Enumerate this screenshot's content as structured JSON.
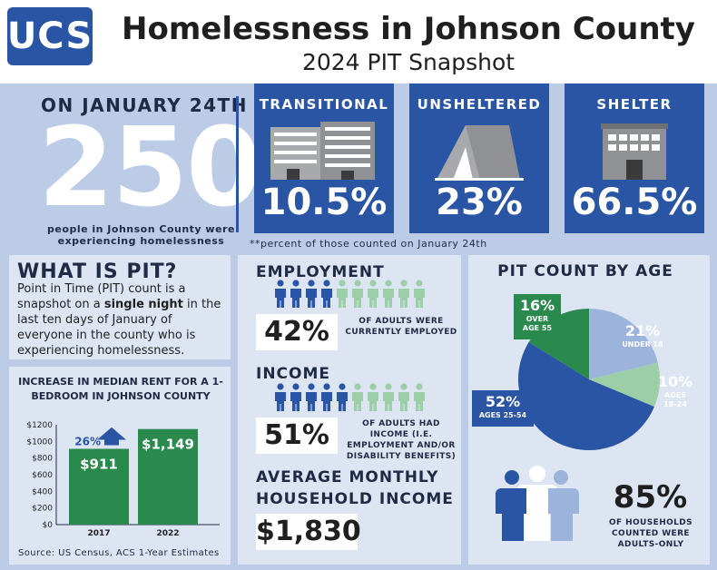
{
  "header": {
    "logo": "UCS",
    "title": "Homelessness in Johnson County",
    "subtitle": "2024 PIT Snapshot"
  },
  "count": {
    "date_label": "ON JANUARY 24TH",
    "number": "250",
    "caption": "people in Johnson County were experiencing homelessness"
  },
  "categories": [
    {
      "label": "TRANSITIONAL",
      "pct": "10.5%",
      "icon": "apartment-buildings-icon"
    },
    {
      "label": "UNSHELTERED",
      "pct": "23%",
      "icon": "tent-icon"
    },
    {
      "label": "SHELTER",
      "pct": "66.5%",
      "icon": "shelter-building-icon"
    }
  ],
  "footnote": "**percent of those counted on January 24th",
  "pit": {
    "title": "WHAT IS PIT?",
    "text_1": "Point in Time (PIT) count is a snapshot on a",
    "text_bold": "single night",
    "text_2": "in the last ten days of January of everyone in the county who is experiencing homelessness."
  },
  "rent": {
    "title": "INCREASE IN MEDIAN RENT FOR A 1-BEDROOM IN JOHNSON COUNTY",
    "increase": "26%",
    "source": "Source: US Census, ACS 1-Year Estimates"
  },
  "employment": {
    "title": "EMPLOYMENT",
    "pct": "42%",
    "caption": "OF ADULTS WERE CURRENTLY EMPLOYED",
    "people_total": 10,
    "people_highlighted": 4
  },
  "income": {
    "title": "INCOME",
    "pct": "51%",
    "caption": "OF ADULTS HAD INCOME (I.E. EMPLOYMENT AND/OR DISABILITY BENEFITS)",
    "people_total": 10,
    "people_highlighted": 5
  },
  "monthly": {
    "title_1": "AVERAGE MONTHLY",
    "title_2": "HOUSEHOLD INCOME",
    "value": "$1,830"
  },
  "age": {
    "title": "PIT COUNT BY AGE"
  },
  "households": {
    "pct": "85%",
    "caption": "OF HOUSEHOLDS COUNTED WERE ADULTS-ONLY",
    "icon": "family-icon"
  },
  "colors": {
    "blue": "#2a55a4",
    "dark_green": "#2a8a4e",
    "light_green": "#9ccfa8",
    "light_blue": "#9cb3db",
    "mid_blue": "#6c8fcb",
    "background": "#bccbe6",
    "panel": "#dde5f3"
  },
  "chart_data": [
    {
      "type": "bar",
      "title": "INCREASE IN MEDIAN RENT FOR A 1-BEDROOM IN JOHNSON COUNTY",
      "categories": [
        "2017",
        "2022"
      ],
      "values": [
        911,
        1149
      ],
      "data_labels": [
        "$911",
        "$1,149"
      ],
      "ylim": [
        0,
        1200
      ],
      "yticks": [
        "$0",
        "$200",
        "$400",
        "$600",
        "$800",
        "$1000",
        "$1200"
      ],
      "ytick_values": [
        0,
        200,
        400,
        600,
        800,
        1000,
        1200
      ],
      "annotation": "26%",
      "grid": false
    },
    {
      "type": "pie",
      "title": "PIT COUNT BY AGE",
      "slices": [
        {
          "label": "UNDER 18",
          "value": 21,
          "text": "21%",
          "color": "#9cb3db"
        },
        {
          "label": "AGES 18-24",
          "value": 10,
          "text": "10%",
          "color": "#9ccfa8"
        },
        {
          "label": "AGES 25-54",
          "value": 52,
          "text": "52%",
          "color": "#2a55a4"
        },
        {
          "label": "OVER AGE 55",
          "value": 16,
          "text": "16%",
          "color": "#2a8a4e"
        }
      ]
    }
  ]
}
